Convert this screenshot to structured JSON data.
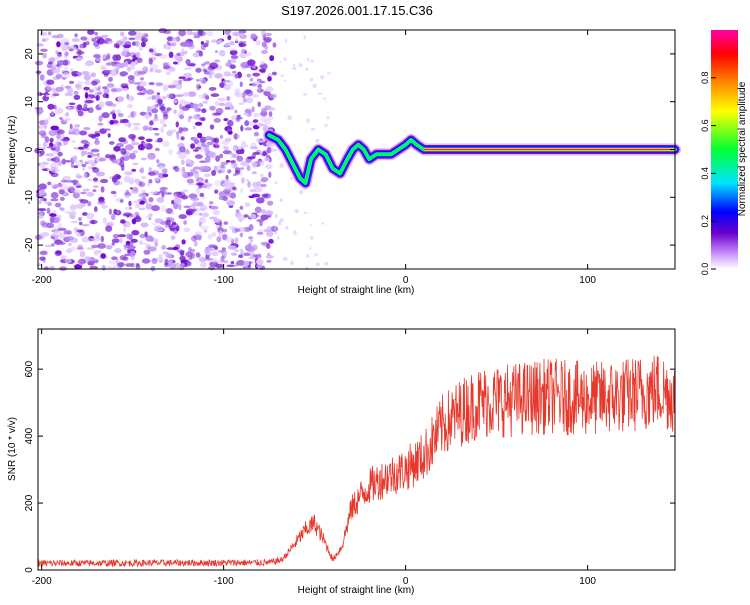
{
  "title": "S197.2026.001.17.15.C36",
  "colors": {
    "snr_line": "#e8382c",
    "frame": "#000000",
    "colormap": [
      "#ffffff",
      "#cc99ff",
      "#6a00cc",
      "#0000ff",
      "#00e5ff",
      "#00ff33",
      "#ffff00",
      "#ff8800",
      "#ff0000",
      "#ff00aa"
    ]
  },
  "chart_data": [
    {
      "type": "heatmap",
      "name": "spectrogram",
      "title": "S197.2026.001.17.15.C36",
      "xlabel": "Height of straight line (km)",
      "ylabel": "Frequency (Hz)",
      "xlim": [
        -202,
        148
      ],
      "ylim": [
        -25,
        25
      ],
      "xticks": [
        -200,
        -100,
        0,
        100
      ],
      "xtick_labels": [
        "-200",
        "-100",
        "0",
        "100"
      ],
      "yticks": [
        20,
        10,
        0,
        -10,
        -20
      ],
      "ytick_labels": [
        "20",
        "10",
        "0",
        "-10",
        "-20"
      ],
      "noise_region_x": [
        -202,
        -72
      ],
      "signal_track": {
        "x": [
          -75,
          -70,
          -66,
          -62,
          -58,
          -55,
          -52,
          -48,
          -44,
          -40,
          -36,
          -32,
          -29,
          -26,
          -23,
          -20,
          -16,
          -12,
          -8,
          -4,
          0,
          3,
          6,
          10,
          148
        ],
        "freq": [
          3,
          2,
          0,
          -3,
          -6,
          -7,
          -2,
          0,
          -1,
          -4,
          -5,
          -2,
          0,
          1,
          0,
          -2,
          -1,
          -1,
          -1,
          0,
          1,
          2,
          1,
          0,
          0
        ]
      },
      "colorbar": {
        "label": "Normalized spectral amplitude",
        "ticks": [
          0.0,
          0.2,
          0.4,
          0.6,
          0.8
        ],
        "tick_labels": [
          "0.0",
          "0.2",
          "0.4",
          "0.6",
          "0.8"
        ],
        "range": [
          0,
          1
        ]
      }
    },
    {
      "type": "line",
      "name": "snr",
      "xlabel": "Height of straight line (km)",
      "ylabel": "SNR (10 * v/v)",
      "xlim": [
        -202,
        148
      ],
      "ylim": [
        0,
        720
      ],
      "xticks": [
        -200,
        -100,
        0,
        100
      ],
      "xtick_labels": [
        "-200",
        "-100",
        "0",
        "100"
      ],
      "yticks": [
        0,
        200,
        400,
        600
      ],
      "ytick_labels": [
        "0",
        "200",
        "400",
        "600"
      ],
      "series": [
        {
          "name": "SNR",
          "trend_x": [
            -202,
            -75,
            -68,
            -62,
            -55,
            -50,
            -45,
            -40,
            -35,
            -30,
            -25,
            -20,
            -10,
            0,
            10,
            20,
            30,
            40,
            60,
            80,
            100,
            120,
            140,
            148
          ],
          "trend_y": [
            20,
            22,
            30,
            70,
            120,
            140,
            90,
            30,
            70,
            180,
            220,
            250,
            280,
            300,
            340,
            430,
            470,
            500,
            510,
            520,
            510,
            520,
            540,
            520
          ]
        }
      ]
    }
  ]
}
